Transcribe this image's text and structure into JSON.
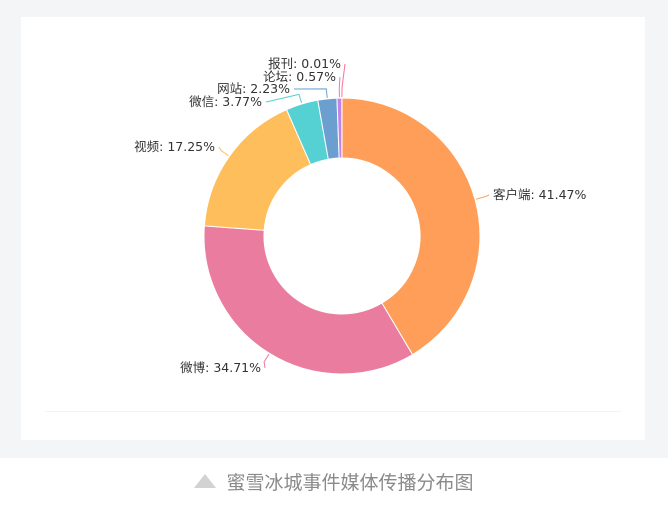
{
  "colors": {
    "background": "#f4f5f7",
    "card": "#ffffff",
    "label_text": "#333333",
    "caption_text": "#8a8a8a"
  },
  "chart_data": {
    "type": "pie",
    "variant": "donut",
    "title": "",
    "legend": "none",
    "slices": [
      {
        "label": "客户端",
        "value": 41.47,
        "display": "客户端: 41.47%",
        "color": "#ff9e59"
      },
      {
        "label": "微博",
        "value": 34.71,
        "display": "微博: 34.71%",
        "color": "#ea7d9f"
      },
      {
        "label": "视频",
        "value": 17.25,
        "display": "视频: 17.25%",
        "color": "#ffbe5c"
      },
      {
        "label": "微信",
        "value": 3.77,
        "display": "微信: 3.77%",
        "color": "#55d0d3"
      },
      {
        "label": "网站",
        "value": 2.23,
        "display": "网站: 2.23%",
        "color": "#6a9fd0"
      },
      {
        "label": "论坛",
        "value": 0.57,
        "display": "论坛: 0.57%",
        "color": "#c084e8"
      },
      {
        "label": "报刊",
        "value": 0.01,
        "display": "报刊: 0.01%",
        "color": "#ff6f91"
      }
    ]
  },
  "caption": {
    "icon": "triangle-icon",
    "text": "蜜雪冰城事件媒体传播分布图"
  }
}
